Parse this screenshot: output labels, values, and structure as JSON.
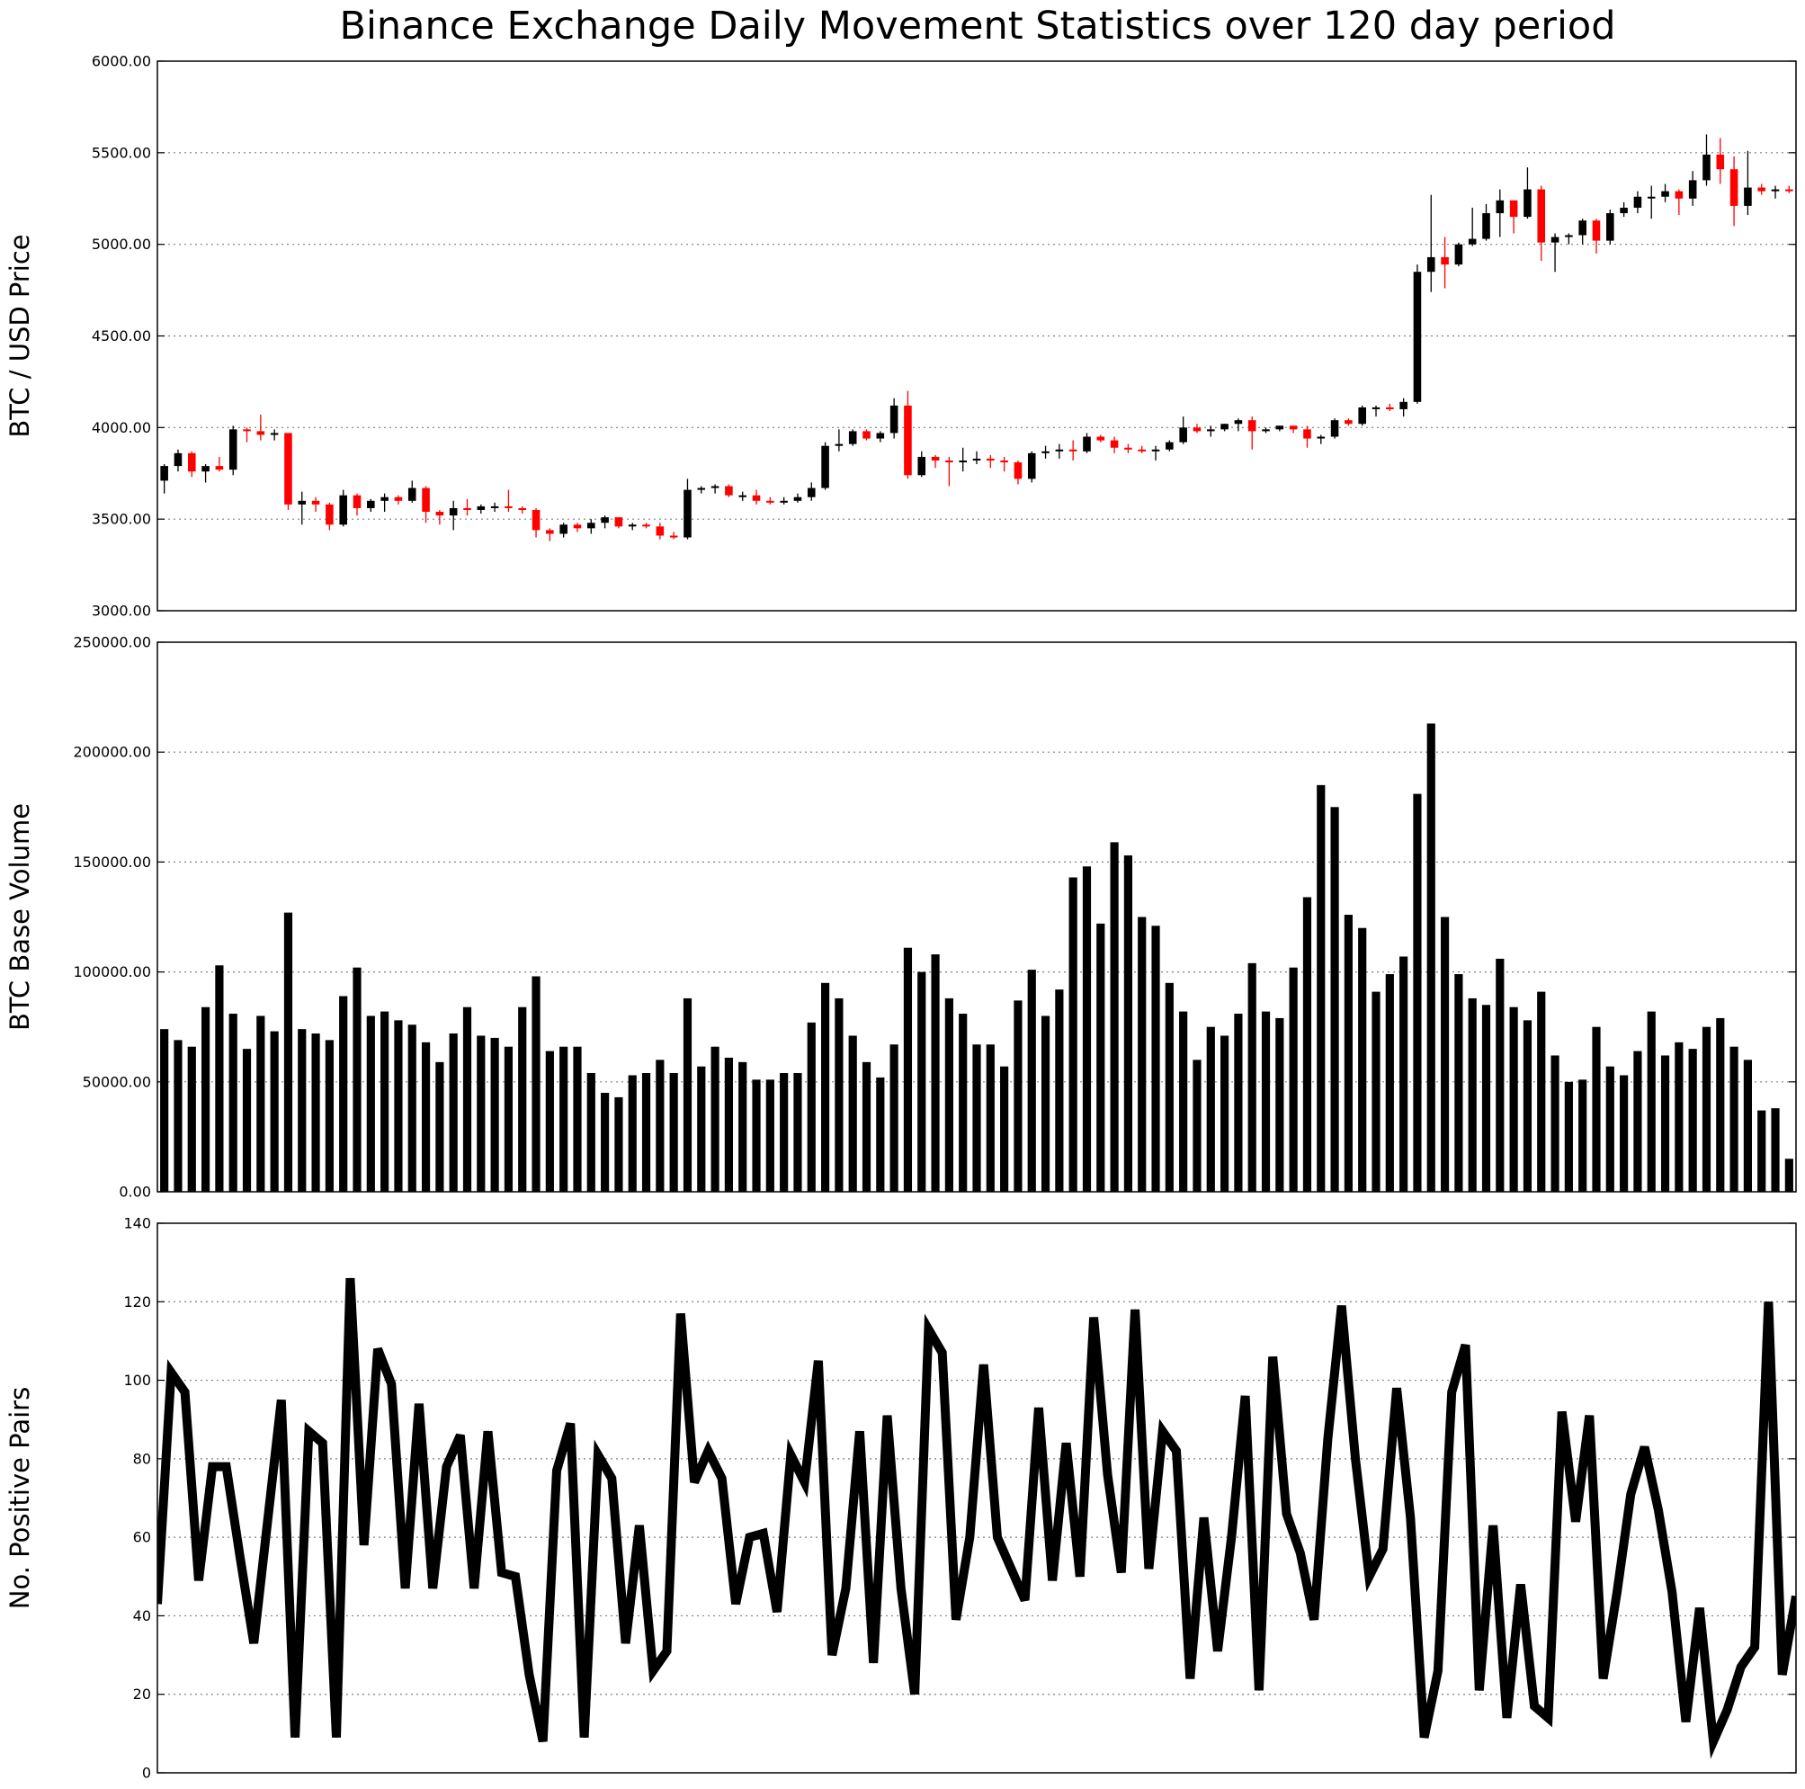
{
  "figure": {
    "title": "Binance Exchange Daily Movement Statistics over 120 day period"
  },
  "colors": {
    "up": "#000000",
    "down": "#ff0000",
    "volume": "#000000",
    "line": "#000000",
    "grid": "#808080"
  },
  "chart_data": [
    {
      "type": "candlestick",
      "ylabel": "BTC / USD Price",
      "ylim": [
        3000,
        6000
      ],
      "yticks": [
        "3000.00",
        "3500.00",
        "4000.00",
        "4500.00",
        "5000.00",
        "5500.00",
        "6000.00"
      ],
      "grid": true,
      "up_color": "black",
      "down_color": "red",
      "ohlc": [
        [
          3710,
          3800,
          3640,
          3790
        ],
        [
          3790,
          3880,
          3760,
          3860
        ],
        [
          3860,
          3870,
          3730,
          3760
        ],
        [
          3760,
          3800,
          3700,
          3790
        ],
        [
          3790,
          3840,
          3760,
          3770
        ],
        [
          3770,
          4010,
          3740,
          3990
        ],
        [
          3990,
          4000,
          3920,
          3980
        ],
        [
          3980,
          4070,
          3930,
          3960
        ],
        [
          3960,
          3990,
          3930,
          3970
        ],
        [
          3970,
          3970,
          3550,
          3580
        ],
        [
          3580,
          3650,
          3470,
          3600
        ],
        [
          3600,
          3620,
          3540,
          3580
        ],
        [
          3580,
          3590,
          3440,
          3470
        ],
        [
          3470,
          3660,
          3460,
          3630
        ],
        [
          3630,
          3640,
          3520,
          3560
        ],
        [
          3560,
          3610,
          3540,
          3600
        ],
        [
          3600,
          3640,
          3540,
          3620
        ],
        [
          3620,
          3630,
          3580,
          3600
        ],
        [
          3600,
          3710,
          3590,
          3670
        ],
        [
          3670,
          3680,
          3480,
          3540
        ],
        [
          3540,
          3550,
          3470,
          3520
        ],
        [
          3520,
          3600,
          3440,
          3560
        ],
        [
          3560,
          3610,
          3520,
          3550
        ],
        [
          3550,
          3580,
          3530,
          3570
        ],
        [
          3570,
          3590,
          3540,
          3570
        ],
        [
          3570,
          3660,
          3540,
          3560
        ],
        [
          3560,
          3570,
          3530,
          3550
        ],
        [
          3550,
          3560,
          3400,
          3440
        ],
        [
          3440,
          3450,
          3380,
          3420
        ],
        [
          3420,
          3480,
          3400,
          3470
        ],
        [
          3470,
          3480,
          3430,
          3450
        ],
        [
          3450,
          3500,
          3420,
          3480
        ],
        [
          3480,
          3520,
          3450,
          3510
        ],
        [
          3510,
          3510,
          3450,
          3460
        ],
        [
          3460,
          3480,
          3440,
          3470
        ],
        [
          3470,
          3480,
          3450,
          3460
        ],
        [
          3460,
          3480,
          3390,
          3410
        ],
        [
          3410,
          3430,
          3390,
          3400
        ],
        [
          3400,
          3720,
          3390,
          3660
        ],
        [
          3660,
          3680,
          3640,
          3670
        ],
        [
          3670,
          3690,
          3640,
          3680
        ],
        [
          3680,
          3690,
          3620,
          3630
        ],
        [
          3630,
          3650,
          3600,
          3630
        ],
        [
          3630,
          3660,
          3580,
          3600
        ],
        [
          3600,
          3620,
          3580,
          3590
        ],
        [
          3590,
          3620,
          3580,
          3600
        ],
        [
          3600,
          3640,
          3590,
          3620
        ],
        [
          3620,
          3700,
          3600,
          3670
        ],
        [
          3670,
          3920,
          3660,
          3900
        ],
        [
          3900,
          3990,
          3870,
          3910
        ],
        [
          3910,
          3990,
          3900,
          3980
        ],
        [
          3980,
          3990,
          3930,
          3940
        ],
        [
          3940,
          3980,
          3920,
          3970
        ],
        [
          3970,
          4160,
          3940,
          4120
        ],
        [
          4120,
          4200,
          3720,
          3740
        ],
        [
          3740,
          3870,
          3730,
          3840
        ],
        [
          3840,
          3850,
          3780,
          3820
        ],
        [
          3820,
          3840,
          3680,
          3810
        ],
        [
          3810,
          3890,
          3760,
          3820
        ],
        [
          3820,
          3870,
          3800,
          3830
        ],
        [
          3830,
          3850,
          3780,
          3820
        ],
        [
          3820,
          3840,
          3760,
          3810
        ],
        [
          3810,
          3820,
          3690,
          3720
        ],
        [
          3720,
          3870,
          3700,
          3860
        ],
        [
          3860,
          3900,
          3830,
          3870
        ],
        [
          3870,
          3910,
          3830,
          3880
        ],
        [
          3880,
          3930,
          3820,
          3870
        ],
        [
          3870,
          3970,
          3860,
          3950
        ],
        [
          3950,
          3960,
          3920,
          3930
        ],
        [
          3930,
          3950,
          3860,
          3890
        ],
        [
          3890,
          3910,
          3860,
          3880
        ],
        [
          3880,
          3900,
          3860,
          3870
        ],
        [
          3870,
          3900,
          3820,
          3880
        ],
        [
          3880,
          3930,
          3870,
          3920
        ],
        [
          3920,
          4060,
          3910,
          4000
        ],
        [
          4000,
          4020,
          3970,
          3980
        ],
        [
          3980,
          4010,
          3950,
          3990
        ],
        [
          3990,
          4020,
          3980,
          4020
        ],
        [
          4020,
          4050,
          3980,
          4040
        ],
        [
          4040,
          4060,
          3880,
          3980
        ],
        [
          3980,
          4000,
          3970,
          3990
        ],
        [
          3990,
          4010,
          3980,
          4010
        ],
        [
          4010,
          4010,
          3970,
          3990
        ],
        [
          3990,
          4010,
          3890,
          3940
        ],
        [
          3940,
          3960,
          3910,
          3950
        ],
        [
          3950,
          4050,
          3940,
          4040
        ],
        [
          4040,
          4050,
          4010,
          4020
        ],
        [
          4020,
          4120,
          4010,
          4110
        ],
        [
          4110,
          4120,
          4060,
          4110
        ],
        [
          4110,
          4130,
          4090,
          4100
        ],
        [
          4100,
          4160,
          4060,
          4140
        ],
        [
          4140,
          4890,
          4130,
          4850
        ],
        [
          4850,
          5270,
          4740,
          4930
        ],
        [
          4930,
          5040,
          4760,
          4890
        ],
        [
          4890,
          5010,
          4880,
          5000
        ],
        [
          5000,
          5200,
          4990,
          5030
        ],
        [
          5030,
          5220,
          5020,
          5170
        ],
        [
          5170,
          5300,
          5040,
          5240
        ],
        [
          5240,
          5240,
          5060,
          5150
        ],
        [
          5150,
          5420,
          5140,
          5300
        ],
        [
          5300,
          5320,
          4910,
          5010
        ],
        [
          5010,
          5060,
          4850,
          5040
        ],
        [
          5040,
          5060,
          5000,
          5050
        ],
        [
          5050,
          5140,
          5000,
          5130
        ],
        [
          5130,
          5140,
          4950,
          5020
        ],
        [
          5020,
          5190,
          5000,
          5170
        ],
        [
          5170,
          5230,
          5150,
          5200
        ],
        [
          5200,
          5290,
          5170,
          5260
        ],
        [
          5260,
          5320,
          5140,
          5260
        ],
        [
          5260,
          5330,
          5230,
          5290
        ],
        [
          5290,
          5300,
          5160,
          5250
        ],
        [
          5250,
          5400,
          5210,
          5350
        ],
        [
          5350,
          5600,
          5320,
          5490
        ],
        [
          5490,
          5580,
          5330,
          5410
        ],
        [
          5410,
          5480,
          5100,
          5210
        ],
        [
          5210,
          5510,
          5160,
          5310
        ],
        [
          5310,
          5330,
          5270,
          5290
        ],
        [
          5290,
          5320,
          5250,
          5300
        ],
        [
          5300,
          5320,
          5280,
          5290
        ]
      ]
    },
    {
      "type": "bar",
      "ylabel": "BTC Base Volume",
      "ylim": [
        0,
        250000
      ],
      "yticks": [
        "0.00",
        "50000.00",
        "100000.00",
        "150000.00",
        "200000.00",
        "250000.00"
      ],
      "grid": true,
      "values": [
        74000,
        69000,
        66000,
        84000,
        103000,
        81000,
        65000,
        80000,
        73000,
        127000,
        74000,
        72000,
        69000,
        89000,
        102000,
        80000,
        82000,
        78000,
        76000,
        68000,
        59000,
        72000,
        84000,
        71000,
        70000,
        66000,
        84000,
        98000,
        64000,
        66000,
        66000,
        54000,
        45000,
        43000,
        53000,
        54000,
        60000,
        54000,
        88000,
        57000,
        66000,
        61000,
        59000,
        51000,
        51000,
        54000,
        54000,
        77000,
        95000,
        88000,
        71000,
        59000,
        52000,
        67000,
        111000,
        100000,
        108000,
        88000,
        81000,
        67000,
        67000,
        57000,
        87000,
        101000,
        80000,
        92000,
        143000,
        148000,
        122000,
        159000,
        153000,
        125000,
        121000,
        95000,
        82000,
        60000,
        75000,
        71000,
        81000,
        104000,
        82000,
        79000,
        102000,
        134000,
        185000,
        175000,
        126000,
        120000,
        91000,
        99000,
        107000,
        181000,
        213000,
        125000,
        99000,
        88000,
        85000,
        106000,
        84000,
        78000,
        91000,
        62000,
        50000,
        51000,
        75000,
        57000,
        53000,
        64000,
        82000,
        62000,
        68000,
        65000,
        75000,
        79000,
        66000,
        60000,
        37000,
        38000,
        15000
      ]
    },
    {
      "type": "line",
      "ylabel": "No. Positive Pairs",
      "ylim": [
        0,
        140
      ],
      "yticks": [
        "0",
        "20",
        "40",
        "60",
        "80",
        "100",
        "120",
        "140"
      ],
      "grid": true,
      "values": [
        43,
        102,
        97,
        49,
        78,
        78,
        55,
        33,
        64,
        95,
        9,
        87,
        84,
        9,
        126,
        58,
        108,
        99,
        47,
        94,
        47,
        78,
        86,
        47,
        87,
        51,
        50,
        25,
        8,
        77,
        89,
        9,
        81,
        75,
        33,
        63,
        26,
        31,
        117,
        74,
        82,
        75,
        43,
        60,
        61,
        41,
        81,
        74,
        105,
        30,
        47,
        87,
        28,
        91,
        47,
        20,
        113,
        107,
        39,
        60,
        104,
        60,
        52,
        44,
        93,
        49,
        84,
        50,
        116,
        76,
        51,
        118,
        52,
        87,
        82,
        24,
        65,
        31,
        60,
        96,
        21,
        106,
        66,
        56,
        39,
        85,
        119,
        80,
        50,
        57,
        98,
        65,
        9,
        26,
        97,
        109,
        21,
        63,
        14,
        48,
        17,
        14,
        92,
        64,
        91,
        24,
        46,
        71,
        83,
        67,
        46,
        13,
        42,
        8,
        16,
        27,
        32,
        120,
        25,
        45
      ]
    }
  ]
}
